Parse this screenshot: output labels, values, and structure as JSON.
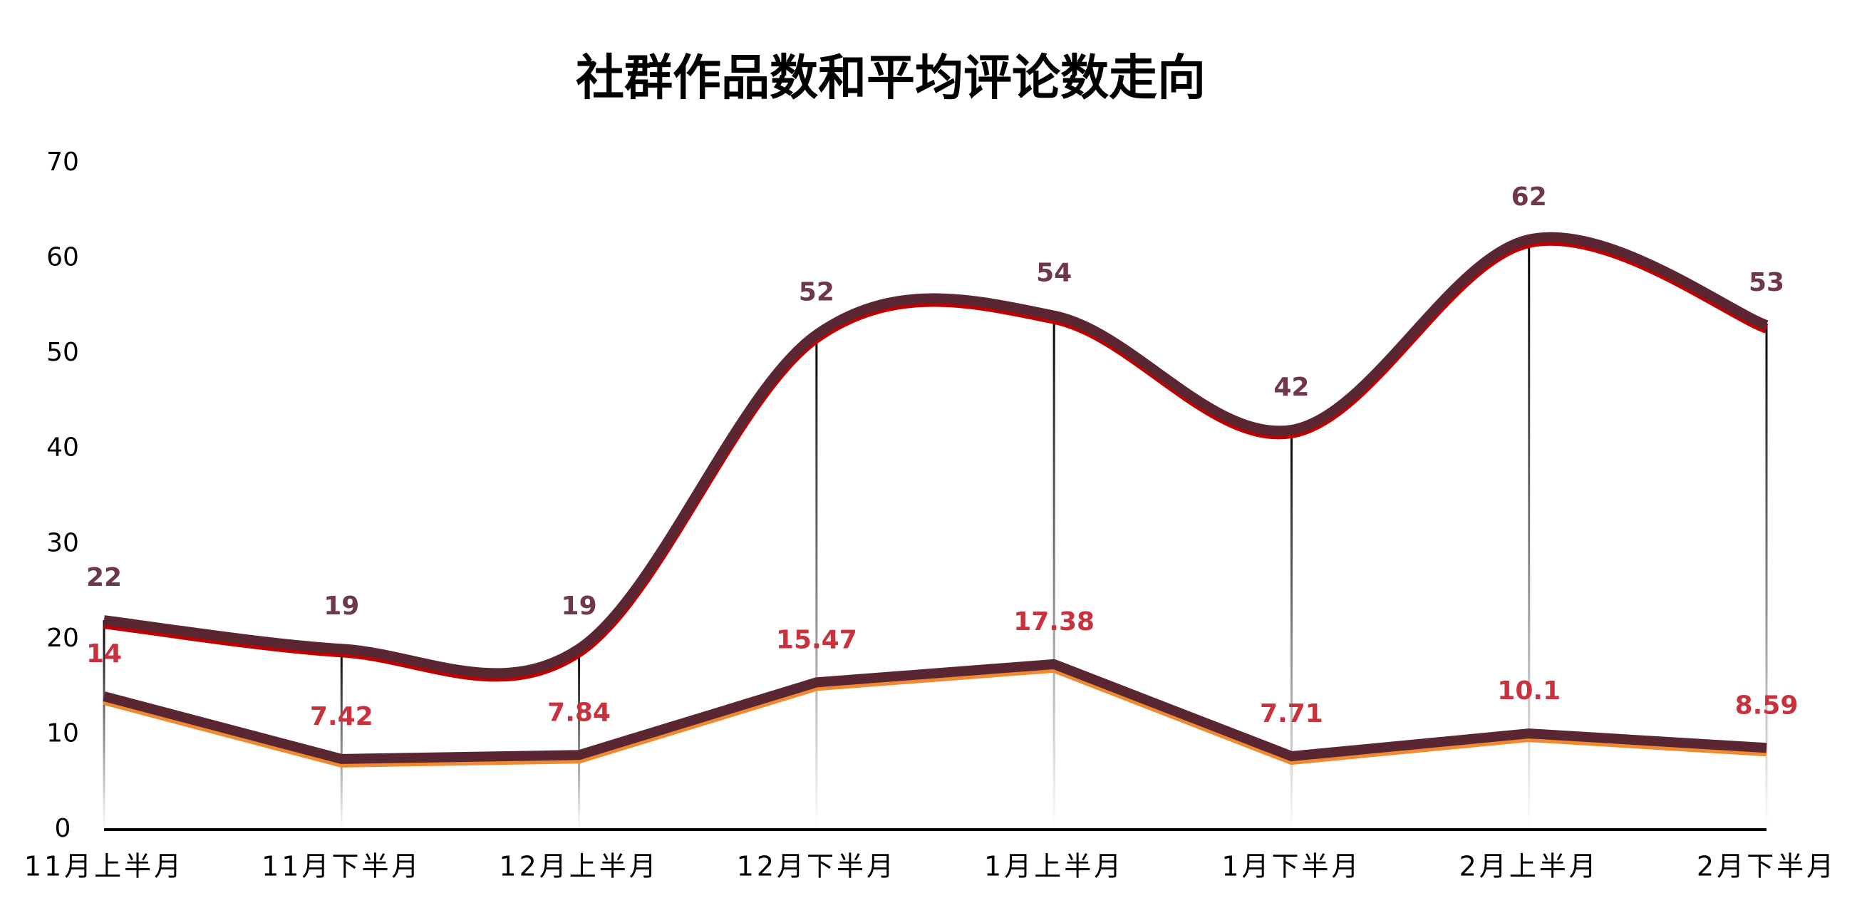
{
  "chart_data": {
    "type": "line",
    "title": "社群作品数和平均评论数走向",
    "categories": [
      "11月上半月",
      "11月下半月",
      "12月上半月",
      "12月下半月",
      "1月上半月",
      "1月下半月",
      "2月上半月",
      "2月下半月"
    ],
    "series": [
      {
        "color": "#5a2632",
        "edge_color": "#c00000",
        "label_color": "#6e3848",
        "smooth": true,
        "values": [
          22,
          19,
          19,
          52,
          54,
          42,
          62,
          53
        ]
      },
      {
        "color": "#5a2632",
        "edge_color": "#f08a30",
        "label_color": "#c8323c",
        "smooth": false,
        "values": [
          14,
          7.42,
          7.84,
          15.47,
          17.38,
          7.71,
          10.1,
          8.59
        ]
      }
    ],
    "ylim": [
      0,
      70
    ],
    "yticks": [
      0,
      10,
      20,
      30,
      40,
      50,
      60,
      70
    ],
    "grid": false,
    "drop_lines": true
  }
}
